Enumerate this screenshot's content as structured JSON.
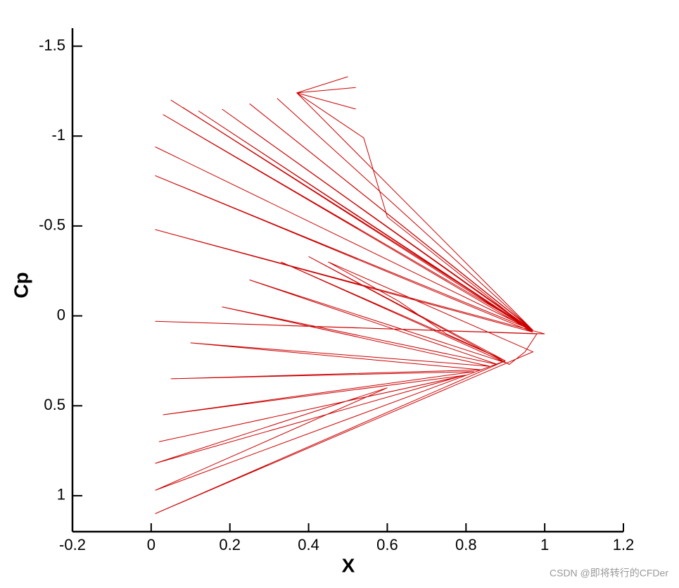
{
  "chart_data": {
    "type": "line",
    "x_label": "X",
    "y_label": "Cp",
    "xlim": [
      -0.2,
      1.2
    ],
    "ylim": [
      1.2,
      -1.6
    ],
    "xticks": [
      -0.2,
      0,
      0.2,
      0.4,
      0.6,
      0.8,
      1,
      1.2
    ],
    "yticks": [
      -1.5,
      -1,
      -0.5,
      0,
      0.5,
      1
    ],
    "x": [
      0.05,
      0.97,
      0.08,
      0.97,
      0.12,
      0.96,
      0.18,
      0.97,
      0.25,
      0.96,
      0.32,
      0.97,
      0.37,
      0.5,
      0.37,
      0.52,
      0.37,
      0.52,
      0.37,
      0.54,
      0.6,
      0.97,
      0.03,
      0.97,
      0.01,
      0.97,
      0.01,
      0.97,
      0.01,
      1.0,
      0.01,
      0.98,
      0.95,
      0.91,
      0.4,
      0.9,
      0.33,
      0.9,
      0.25,
      0.88,
      0.18,
      0.86,
      0.1,
      0.84,
      0.05,
      0.82,
      0.03,
      0.8,
      0.02,
      0.78,
      0.01,
      0.6,
      0.01,
      0.9,
      0.01,
      0.97,
      0.45,
      0.63,
      0.75,
      0.9
    ],
    "series": [
      {
        "color": "#cc0000",
        "values": [
          -1.2,
          0.08,
          -1.16,
          0.09,
          -1.14,
          0.07,
          -1.15,
          0.08,
          -1.18,
          0.06,
          -1.21,
          0.08,
          -1.24,
          -1.33,
          -1.24,
          -1.27,
          -1.24,
          -1.15,
          -1.24,
          -0.99,
          -0.55,
          0.09,
          -1.12,
          0.08,
          -0.94,
          0.08,
          -0.78,
          0.09,
          -0.48,
          0.1,
          0.03,
          0.1,
          0.2,
          0.27,
          -0.33,
          0.25,
          -0.3,
          0.26,
          -0.2,
          0.27,
          -0.05,
          0.28,
          0.15,
          0.3,
          0.35,
          0.31,
          0.55,
          0.33,
          0.7,
          0.34,
          0.82,
          0.4,
          0.97,
          0.25,
          1.1,
          0.2,
          -0.3,
          -0.08,
          0.1,
          0.25
        ]
      }
    ],
    "watermark": "CSDN @即将转行的CFDer"
  }
}
